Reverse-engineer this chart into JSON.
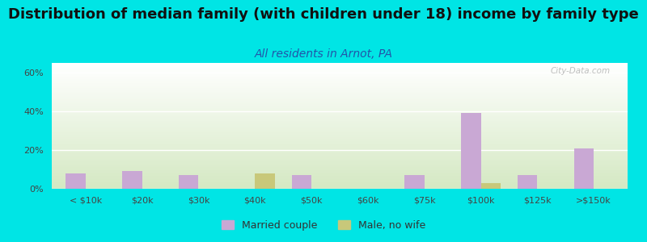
{
  "title": "Distribution of median family (with children under 18) income by family type",
  "subtitle": "All residents in Arnot, PA",
  "categories": [
    "< $10k",
    "$20k",
    "$30k",
    "$40k",
    "$50k",
    "$60k",
    "$75k",
    "$100k",
    "$125k",
    ">$150k"
  ],
  "married_couple": [
    8.0,
    9.0,
    7.0,
    0.0,
    7.0,
    0.0,
    7.0,
    39.0,
    7.0,
    21.0
  ],
  "male_no_wife": [
    0.0,
    0.0,
    0.0,
    8.0,
    0.0,
    0.0,
    0.0,
    3.0,
    0.0,
    0.0
  ],
  "married_color": "#c9a8d4",
  "male_color": "#c8c87a",
  "bg_color": "#00e5e5",
  "ylabel_vals": [
    "0%",
    "20%",
    "40%",
    "60%"
  ],
  "yticks": [
    0,
    20,
    40,
    60
  ],
  "ylim": [
    0,
    65
  ],
  "title_fontsize": 13,
  "subtitle_fontsize": 10,
  "bar_width": 0.35,
  "watermark": "City-Data.com"
}
